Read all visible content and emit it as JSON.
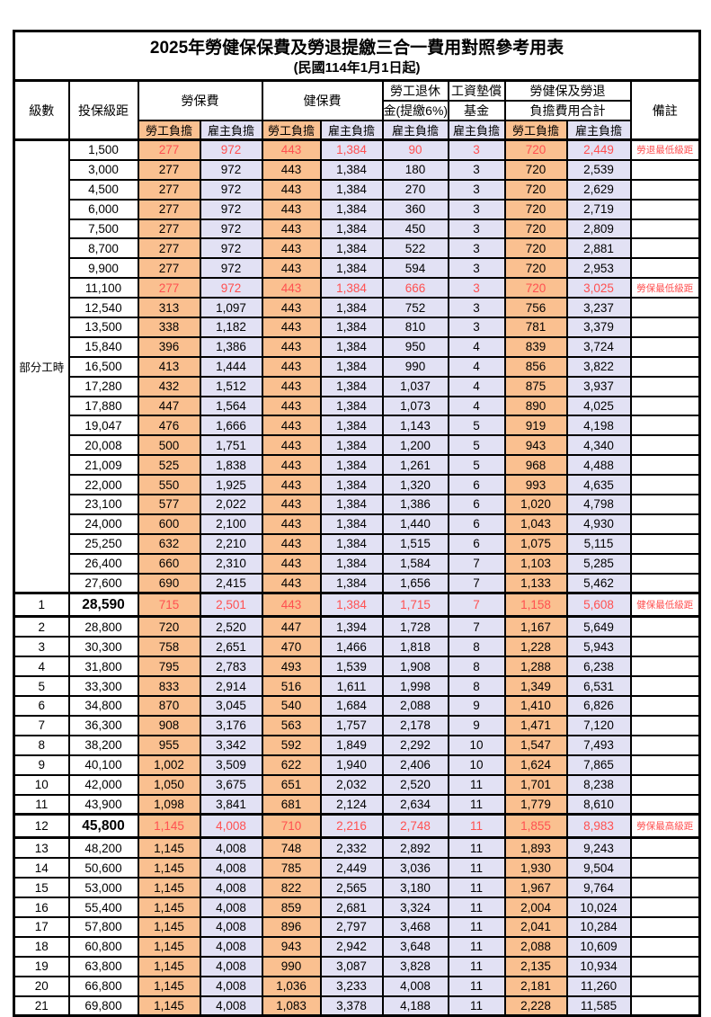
{
  "title": "2025年勞健保保費及勞退提繳三合一費用對照參考用表",
  "subtitle": "(民國114年1月1日起)",
  "header": {
    "level": "級數",
    "bracket": "投保級距",
    "labor_insurance": "勞保費",
    "health_insurance": "健保費",
    "pension_line1": "勞工退休",
    "pension_line2": "金(提繳6%)",
    "wage_fund_line1": "工資墊償",
    "wage_fund_line2": "基金",
    "total_line1": "勞健保及勞退",
    "total_line2": "負擔費用合計",
    "remark": "備註",
    "employee_share": "勞工負擔",
    "employer_share": "雇主負擔"
  },
  "part_time_label": "部分工時",
  "part_time_rowspan": 23,
  "colors": {
    "employee_bg": "#FAC090",
    "employer_bg": "#E2E1F4",
    "highlight_text": "#FF5050",
    "border": "#000000"
  },
  "rows": [
    {
      "level": "",
      "bracket": "1,500",
      "li_emp": "277",
      "li_er": "972",
      "hi_emp": "443",
      "hi_er": "1,384",
      "pension": "90",
      "wage": "3",
      "tot_emp": "720",
      "tot_er": "2,449",
      "remark": "勞退最低級距",
      "highlight": true,
      "key": false
    },
    {
      "level": "",
      "bracket": "3,000",
      "li_emp": "277",
      "li_er": "972",
      "hi_emp": "443",
      "hi_er": "1,384",
      "pension": "180",
      "wage": "3",
      "tot_emp": "720",
      "tot_er": "2,539",
      "remark": "",
      "highlight": false,
      "key": false
    },
    {
      "level": "",
      "bracket": "4,500",
      "li_emp": "277",
      "li_er": "972",
      "hi_emp": "443",
      "hi_er": "1,384",
      "pension": "270",
      "wage": "3",
      "tot_emp": "720",
      "tot_er": "2,629",
      "remark": "",
      "highlight": false,
      "key": false
    },
    {
      "level": "",
      "bracket": "6,000",
      "li_emp": "277",
      "li_er": "972",
      "hi_emp": "443",
      "hi_er": "1,384",
      "pension": "360",
      "wage": "3",
      "tot_emp": "720",
      "tot_er": "2,719",
      "remark": "",
      "highlight": false,
      "key": false
    },
    {
      "level": "",
      "bracket": "7,500",
      "li_emp": "277",
      "li_er": "972",
      "hi_emp": "443",
      "hi_er": "1,384",
      "pension": "450",
      "wage": "3",
      "tot_emp": "720",
      "tot_er": "2,809",
      "remark": "",
      "highlight": false,
      "key": false
    },
    {
      "level": "",
      "bracket": "8,700",
      "li_emp": "277",
      "li_er": "972",
      "hi_emp": "443",
      "hi_er": "1,384",
      "pension": "522",
      "wage": "3",
      "tot_emp": "720",
      "tot_er": "2,881",
      "remark": "",
      "highlight": false,
      "key": false
    },
    {
      "level": "",
      "bracket": "9,900",
      "li_emp": "277",
      "li_er": "972",
      "hi_emp": "443",
      "hi_er": "1,384",
      "pension": "594",
      "wage": "3",
      "tot_emp": "720",
      "tot_er": "2,953",
      "remark": "",
      "highlight": false,
      "key": false
    },
    {
      "level": "",
      "bracket": "11,100",
      "li_emp": "277",
      "li_er": "972",
      "hi_emp": "443",
      "hi_er": "1,384",
      "pension": "666",
      "wage": "3",
      "tot_emp": "720",
      "tot_er": "3,025",
      "remark": "勞保最低級距",
      "highlight": true,
      "key": false
    },
    {
      "level": "",
      "bracket": "12,540",
      "li_emp": "313",
      "li_er": "1,097",
      "hi_emp": "443",
      "hi_er": "1,384",
      "pension": "752",
      "wage": "3",
      "tot_emp": "756",
      "tot_er": "3,237",
      "remark": "",
      "highlight": false,
      "key": false
    },
    {
      "level": "",
      "bracket": "13,500",
      "li_emp": "338",
      "li_er": "1,182",
      "hi_emp": "443",
      "hi_er": "1,384",
      "pension": "810",
      "wage": "3",
      "tot_emp": "781",
      "tot_er": "3,379",
      "remark": "",
      "highlight": false,
      "key": false
    },
    {
      "level": "",
      "bracket": "15,840",
      "li_emp": "396",
      "li_er": "1,386",
      "hi_emp": "443",
      "hi_er": "1,384",
      "pension": "950",
      "wage": "4",
      "tot_emp": "839",
      "tot_er": "3,724",
      "remark": "",
      "highlight": false,
      "key": false
    },
    {
      "level": "",
      "bracket": "16,500",
      "li_emp": "413",
      "li_er": "1,444",
      "hi_emp": "443",
      "hi_er": "1,384",
      "pension": "990",
      "wage": "4",
      "tot_emp": "856",
      "tot_er": "3,822",
      "remark": "",
      "highlight": false,
      "key": false
    },
    {
      "level": "",
      "bracket": "17,280",
      "li_emp": "432",
      "li_er": "1,512",
      "hi_emp": "443",
      "hi_er": "1,384",
      "pension": "1,037",
      "wage": "4",
      "tot_emp": "875",
      "tot_er": "3,937",
      "remark": "",
      "highlight": false,
      "key": false
    },
    {
      "level": "",
      "bracket": "17,880",
      "li_emp": "447",
      "li_er": "1,564",
      "hi_emp": "443",
      "hi_er": "1,384",
      "pension": "1,073",
      "wage": "4",
      "tot_emp": "890",
      "tot_er": "4,025",
      "remark": "",
      "highlight": false,
      "key": false
    },
    {
      "level": "",
      "bracket": "19,047",
      "li_emp": "476",
      "li_er": "1,666",
      "hi_emp": "443",
      "hi_er": "1,384",
      "pension": "1,143",
      "wage": "5",
      "tot_emp": "919",
      "tot_er": "4,198",
      "remark": "",
      "highlight": false,
      "key": false
    },
    {
      "level": "",
      "bracket": "20,008",
      "li_emp": "500",
      "li_er": "1,751",
      "hi_emp": "443",
      "hi_er": "1,384",
      "pension": "1,200",
      "wage": "5",
      "tot_emp": "943",
      "tot_er": "4,340",
      "remark": "",
      "highlight": false,
      "key": false
    },
    {
      "level": "",
      "bracket": "21,009",
      "li_emp": "525",
      "li_er": "1,838",
      "hi_emp": "443",
      "hi_er": "1,384",
      "pension": "1,261",
      "wage": "5",
      "tot_emp": "968",
      "tot_er": "4,488",
      "remark": "",
      "highlight": false,
      "key": false
    },
    {
      "level": "",
      "bracket": "22,000",
      "li_emp": "550",
      "li_er": "1,925",
      "hi_emp": "443",
      "hi_er": "1,384",
      "pension": "1,320",
      "wage": "6",
      "tot_emp": "993",
      "tot_er": "4,635",
      "remark": "",
      "highlight": false,
      "key": false
    },
    {
      "level": "",
      "bracket": "23,100",
      "li_emp": "577",
      "li_er": "2,022",
      "hi_emp": "443",
      "hi_er": "1,384",
      "pension": "1,386",
      "wage": "6",
      "tot_emp": "1,020",
      "tot_er": "4,798",
      "remark": "",
      "highlight": false,
      "key": false
    },
    {
      "level": "",
      "bracket": "24,000",
      "li_emp": "600",
      "li_er": "2,100",
      "hi_emp": "443",
      "hi_er": "1,384",
      "pension": "1,440",
      "wage": "6",
      "tot_emp": "1,043",
      "tot_er": "4,930",
      "remark": "",
      "highlight": false,
      "key": false
    },
    {
      "level": "",
      "bracket": "25,250",
      "li_emp": "632",
      "li_er": "2,210",
      "hi_emp": "443",
      "hi_er": "1,384",
      "pension": "1,515",
      "wage": "6",
      "tot_emp": "1,075",
      "tot_er": "5,115",
      "remark": "",
      "highlight": false,
      "key": false
    },
    {
      "level": "",
      "bracket": "26,400",
      "li_emp": "660",
      "li_er": "2,310",
      "hi_emp": "443",
      "hi_er": "1,384",
      "pension": "1,584",
      "wage": "7",
      "tot_emp": "1,103",
      "tot_er": "5,285",
      "remark": "",
      "highlight": false,
      "key": false
    },
    {
      "level": "",
      "bracket": "27,600",
      "li_emp": "690",
      "li_er": "2,415",
      "hi_emp": "443",
      "hi_er": "1,384",
      "pension": "1,656",
      "wage": "7",
      "tot_emp": "1,133",
      "tot_er": "5,462",
      "remark": "",
      "highlight": false,
      "key": false
    },
    {
      "level": "1",
      "bracket": "28,590",
      "li_emp": "715",
      "li_er": "2,501",
      "hi_emp": "443",
      "hi_er": "1,384",
      "pension": "1,715",
      "wage": "7",
      "tot_emp": "1,158",
      "tot_er": "5,608",
      "remark": "健保最低級距",
      "highlight": true,
      "key": true
    },
    {
      "level": "2",
      "bracket": "28,800",
      "li_emp": "720",
      "li_er": "2,520",
      "hi_emp": "447",
      "hi_er": "1,394",
      "pension": "1,728",
      "wage": "7",
      "tot_emp": "1,167",
      "tot_er": "5,649",
      "remark": "",
      "highlight": false,
      "key": false
    },
    {
      "level": "3",
      "bracket": "30,300",
      "li_emp": "758",
      "li_er": "2,651",
      "hi_emp": "470",
      "hi_er": "1,466",
      "pension": "1,818",
      "wage": "8",
      "tot_emp": "1,228",
      "tot_er": "5,943",
      "remark": "",
      "highlight": false,
      "key": false
    },
    {
      "level": "4",
      "bracket": "31,800",
      "li_emp": "795",
      "li_er": "2,783",
      "hi_emp": "493",
      "hi_er": "1,539",
      "pension": "1,908",
      "wage": "8",
      "tot_emp": "1,288",
      "tot_er": "6,238",
      "remark": "",
      "highlight": false,
      "key": false
    },
    {
      "level": "5",
      "bracket": "33,300",
      "li_emp": "833",
      "li_er": "2,914",
      "hi_emp": "516",
      "hi_er": "1,611",
      "pension": "1,998",
      "wage": "8",
      "tot_emp": "1,349",
      "tot_er": "6,531",
      "remark": "",
      "highlight": false,
      "key": false
    },
    {
      "level": "6",
      "bracket": "34,800",
      "li_emp": "870",
      "li_er": "3,045",
      "hi_emp": "540",
      "hi_er": "1,684",
      "pension": "2,088",
      "wage": "9",
      "tot_emp": "1,410",
      "tot_er": "6,826",
      "remark": "",
      "highlight": false,
      "key": false
    },
    {
      "level": "7",
      "bracket": "36,300",
      "li_emp": "908",
      "li_er": "3,176",
      "hi_emp": "563",
      "hi_er": "1,757",
      "pension": "2,178",
      "wage": "9",
      "tot_emp": "1,471",
      "tot_er": "7,120",
      "remark": "",
      "highlight": false,
      "key": false
    },
    {
      "level": "8",
      "bracket": "38,200",
      "li_emp": "955",
      "li_er": "3,342",
      "hi_emp": "592",
      "hi_er": "1,849",
      "pension": "2,292",
      "wage": "10",
      "tot_emp": "1,547",
      "tot_er": "7,493",
      "remark": "",
      "highlight": false,
      "key": false
    },
    {
      "level": "9",
      "bracket": "40,100",
      "li_emp": "1,002",
      "li_er": "3,509",
      "hi_emp": "622",
      "hi_er": "1,940",
      "pension": "2,406",
      "wage": "10",
      "tot_emp": "1,624",
      "tot_er": "7,865",
      "remark": "",
      "highlight": false,
      "key": false
    },
    {
      "level": "10",
      "bracket": "42,000",
      "li_emp": "1,050",
      "li_er": "3,675",
      "hi_emp": "651",
      "hi_er": "2,032",
      "pension": "2,520",
      "wage": "11",
      "tot_emp": "1,701",
      "tot_er": "8,238",
      "remark": "",
      "highlight": false,
      "key": false
    },
    {
      "level": "11",
      "bracket": "43,900",
      "li_emp": "1,098",
      "li_er": "3,841",
      "hi_emp": "681",
      "hi_er": "2,124",
      "pension": "2,634",
      "wage": "11",
      "tot_emp": "1,779",
      "tot_er": "8,610",
      "remark": "",
      "highlight": false,
      "key": false
    },
    {
      "level": "12",
      "bracket": "45,800",
      "li_emp": "1,145",
      "li_er": "4,008",
      "hi_emp": "710",
      "hi_er": "2,216",
      "pension": "2,748",
      "wage": "11",
      "tot_emp": "1,855",
      "tot_er": "8,983",
      "remark": "勞保最高級距",
      "highlight": true,
      "key": true
    },
    {
      "level": "13",
      "bracket": "48,200",
      "li_emp": "1,145",
      "li_er": "4,008",
      "hi_emp": "748",
      "hi_er": "2,332",
      "pension": "2,892",
      "wage": "11",
      "tot_emp": "1,893",
      "tot_er": "9,243",
      "remark": "",
      "highlight": false,
      "key": false
    },
    {
      "level": "14",
      "bracket": "50,600",
      "li_emp": "1,145",
      "li_er": "4,008",
      "hi_emp": "785",
      "hi_er": "2,449",
      "pension": "3,036",
      "wage": "11",
      "tot_emp": "1,930",
      "tot_er": "9,504",
      "remark": "",
      "highlight": false,
      "key": false
    },
    {
      "level": "15",
      "bracket": "53,000",
      "li_emp": "1,145",
      "li_er": "4,008",
      "hi_emp": "822",
      "hi_er": "2,565",
      "pension": "3,180",
      "wage": "11",
      "tot_emp": "1,967",
      "tot_er": "9,764",
      "remark": "",
      "highlight": false,
      "key": false
    },
    {
      "level": "16",
      "bracket": "55,400",
      "li_emp": "1,145",
      "li_er": "4,008",
      "hi_emp": "859",
      "hi_er": "2,681",
      "pension": "3,324",
      "wage": "11",
      "tot_emp": "2,004",
      "tot_er": "10,024",
      "remark": "",
      "highlight": false,
      "key": false
    },
    {
      "level": "17",
      "bracket": "57,800",
      "li_emp": "1,145",
      "li_er": "4,008",
      "hi_emp": "896",
      "hi_er": "2,797",
      "pension": "3,468",
      "wage": "11",
      "tot_emp": "2,041",
      "tot_er": "10,284",
      "remark": "",
      "highlight": false,
      "key": false
    },
    {
      "level": "18",
      "bracket": "60,800",
      "li_emp": "1,145",
      "li_er": "4,008",
      "hi_emp": "943",
      "hi_er": "2,942",
      "pension": "3,648",
      "wage": "11",
      "tot_emp": "2,088",
      "tot_er": "10,609",
      "remark": "",
      "highlight": false,
      "key": false
    },
    {
      "level": "19",
      "bracket": "63,800",
      "li_emp": "1,145",
      "li_er": "4,008",
      "hi_emp": "990",
      "hi_er": "3,087",
      "pension": "3,828",
      "wage": "11",
      "tot_emp": "2,135",
      "tot_er": "10,934",
      "remark": "",
      "highlight": false,
      "key": false
    },
    {
      "level": "20",
      "bracket": "66,800",
      "li_emp": "1,145",
      "li_er": "4,008",
      "hi_emp": "1,036",
      "hi_er": "3,233",
      "pension": "4,008",
      "wage": "11",
      "tot_emp": "2,181",
      "tot_er": "11,260",
      "remark": "",
      "highlight": false,
      "key": false
    },
    {
      "level": "21",
      "bracket": "69,800",
      "li_emp": "1,145",
      "li_er": "4,008",
      "hi_emp": "1,083",
      "hi_er": "3,378",
      "pension": "4,188",
      "wage": "11",
      "tot_emp": "2,228",
      "tot_er": "11,585",
      "remark": "",
      "highlight": false,
      "key": false
    }
  ]
}
